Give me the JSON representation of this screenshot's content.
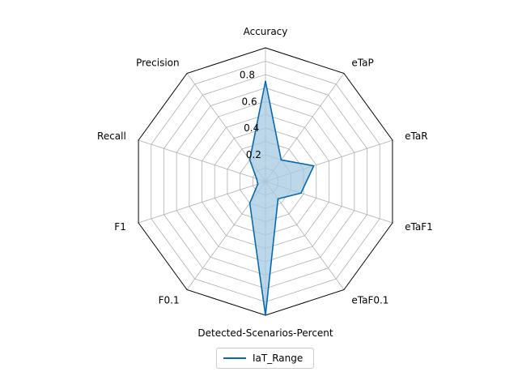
{
  "chart_data": {
    "type": "radar",
    "categories": [
      "Accuracy",
      "eTaP",
      "eTaR",
      "eTaF1",
      "eTaF0.1",
      "Detected-Scenarios-Percent",
      "F0.1",
      "F1",
      "Recall",
      "Precision"
    ],
    "series": [
      {
        "name": "IaT_Range",
        "values": [
          0.75,
          0.2,
          0.38,
          0.28,
          0.16,
          1.0,
          0.2,
          0.06,
          0.07,
          0.2
        ]
      }
    ],
    "rlim": [
      0,
      1
    ],
    "rticks": [
      0.2,
      0.4,
      0.6,
      0.8
    ],
    "rtick_labels": [
      "0.2",
      "0.4",
      "0.6",
      "0.8"
    ],
    "grid": true,
    "legend_position": "bottom-center",
    "colors": {
      "line": "#0868ac",
      "fill": "#a6c9e0",
      "grid": "#b0b0b0",
      "frame": "#000000"
    }
  }
}
